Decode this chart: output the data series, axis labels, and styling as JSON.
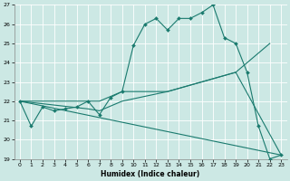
{
  "xlabel": "Humidex (Indice chaleur)",
  "bg_color": "#cce8e4",
  "grid_color": "#ffffff",
  "line_color": "#1a7a6e",
  "xlim": [
    -0.5,
    23.5
  ],
  "ylim": [
    19,
    27
  ],
  "x_ticks": [
    0,
    1,
    2,
    3,
    4,
    5,
    6,
    7,
    8,
    9,
    10,
    11,
    12,
    13,
    14,
    15,
    16,
    17,
    18,
    19,
    20,
    21,
    22,
    23
  ],
  "y_ticks": [
    19,
    20,
    21,
    22,
    23,
    24,
    25,
    26,
    27
  ],
  "series1_x": [
    0,
    1,
    2,
    3,
    4,
    5,
    6,
    7,
    8,
    9,
    10,
    11,
    12,
    13,
    14,
    15,
    16,
    17,
    18,
    19,
    20,
    21,
    22,
    23
  ],
  "series1_y": [
    22.0,
    20.7,
    21.7,
    21.5,
    21.6,
    21.7,
    22.0,
    21.3,
    22.2,
    22.5,
    24.9,
    26.0,
    26.3,
    25.7,
    26.3,
    26.3,
    26.6,
    27.0,
    25.3,
    25.0,
    23.5,
    20.7,
    19.0,
    19.2
  ],
  "series2_x": [
    0,
    7,
    9,
    13,
    19,
    22
  ],
  "series2_y": [
    22.0,
    22.0,
    22.5,
    22.5,
    23.5,
    25.0
  ],
  "series3_x": [
    0,
    23
  ],
  "series3_y": [
    22.0,
    19.2
  ],
  "series4_x": [
    0,
    6,
    7,
    9,
    13,
    19,
    23
  ],
  "series4_y": [
    22.0,
    21.6,
    21.5,
    22.0,
    22.5,
    23.5,
    19.2
  ]
}
